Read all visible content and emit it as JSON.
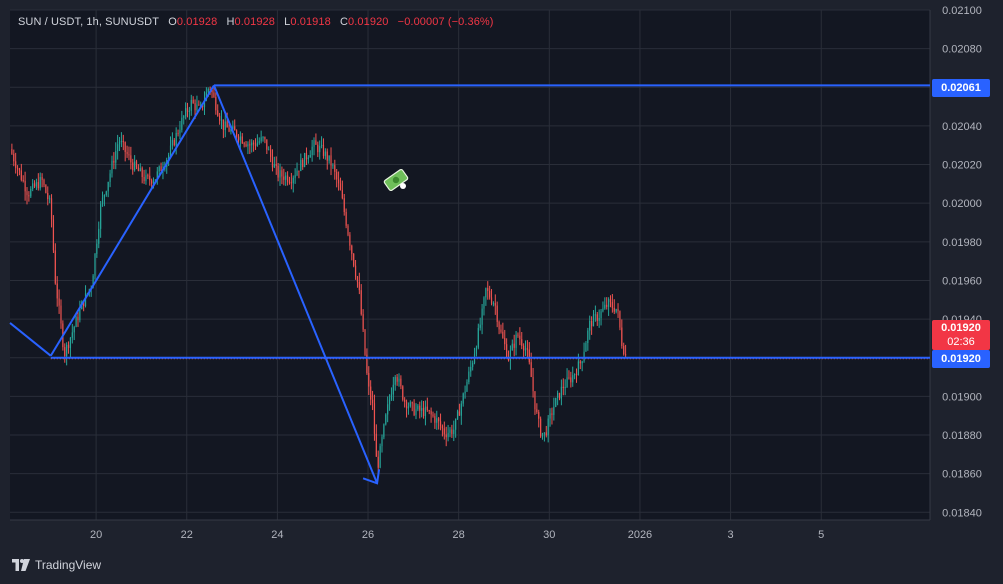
{
  "legend": {
    "symbol": "SUN / USDT, 1h, SUNUSDT",
    "open_label": "O",
    "open": "0.01928",
    "high_label": "H",
    "high": "0.01928",
    "low_label": "L",
    "low": "0.01918",
    "close_label": "C",
    "close": "0.01920",
    "change": "−0.00007 (−0.36%)"
  },
  "price_tags": {
    "upper_line": "0.02061",
    "last_price": "0.01920",
    "countdown": "02:36",
    "lower_line": "0.01920"
  },
  "footer": {
    "brand": "TradingView"
  },
  "colors": {
    "background": "#1e222d",
    "pane": "#131722",
    "grid": "#2a2e39",
    "up": "#26a69a",
    "down": "#ef5350",
    "drawing": "#2962ff",
    "axis_text": "#b2b5be"
  },
  "icons": {
    "sticker": "money-icon",
    "brand_logo": "tradingview-logo"
  },
  "chart_data": {
    "type": "candlestick",
    "title": "SUN / USDT, 1h, SUNUSDT",
    "ylim": [
      0.01836,
      0.021
    ],
    "y_ticks": [
      "0.02100",
      "0.02080",
      "0.02060",
      "0.02040",
      "0.02020",
      "0.02000",
      "0.01980",
      "0.01960",
      "0.01940",
      "0.01920",
      "0.01900",
      "0.01880",
      "0.01860",
      "0.01840"
    ],
    "x_ticks": [
      "20",
      "22",
      "24",
      "26",
      "28",
      "30",
      "2026",
      "3",
      "5"
    ],
    "x_tick_days": [
      20,
      22,
      24,
      26,
      28,
      30,
      32,
      34,
      36
    ],
    "xlim_days": [
      18.1,
      38.4
    ],
    "price_path": [
      {
        "d": 18.1,
        "p": 0.02028
      },
      {
        "d": 18.5,
        "p": 0.02005
      },
      {
        "d": 18.8,
        "p": 0.02012
      },
      {
        "d": 19.0,
        "p": 0.01998
      },
      {
        "d": 19.1,
        "p": 0.0196
      },
      {
        "d": 19.3,
        "p": 0.01922
      },
      {
        "d": 19.7,
        "p": 0.01948
      },
      {
        "d": 19.9,
        "p": 0.01958
      },
      {
        "d": 20.1,
        "p": 0.01998
      },
      {
        "d": 20.3,
        "p": 0.02015
      },
      {
        "d": 20.5,
        "p": 0.02033
      },
      {
        "d": 20.8,
        "p": 0.0202
      },
      {
        "d": 21.1,
        "p": 0.02012
      },
      {
        "d": 21.3,
        "p": 0.02013
      },
      {
        "d": 21.6,
        "p": 0.02025
      },
      {
        "d": 21.9,
        "p": 0.02043
      },
      {
        "d": 22.1,
        "p": 0.02052
      },
      {
        "d": 22.3,
        "p": 0.02048
      },
      {
        "d": 22.5,
        "p": 0.02061
      },
      {
        "d": 22.8,
        "p": 0.0204
      },
      {
        "d": 23.1,
        "p": 0.02036
      },
      {
        "d": 23.4,
        "p": 0.0203
      },
      {
        "d": 23.7,
        "p": 0.02033
      },
      {
        "d": 24.0,
        "p": 0.02015
      },
      {
        "d": 24.3,
        "p": 0.02013
      },
      {
        "d": 24.6,
        "p": 0.02023
      },
      {
        "d": 24.8,
        "p": 0.0203
      },
      {
        "d": 25.0,
        "p": 0.02027
      },
      {
        "d": 25.2,
        "p": 0.0202
      },
      {
        "d": 25.4,
        "p": 0.02005
      },
      {
        "d": 25.6,
        "p": 0.0198
      },
      {
        "d": 25.8,
        "p": 0.01955
      },
      {
        "d": 25.9,
        "p": 0.0193
      },
      {
        "d": 26.0,
        "p": 0.01905
      },
      {
        "d": 26.1,
        "p": 0.01895
      },
      {
        "d": 26.2,
        "p": 0.01862
      },
      {
        "d": 26.4,
        "p": 0.0189
      },
      {
        "d": 26.6,
        "p": 0.01913
      },
      {
        "d": 26.8,
        "p": 0.01898
      },
      {
        "d": 27.0,
        "p": 0.01893
      },
      {
        "d": 27.3,
        "p": 0.01892
      },
      {
        "d": 27.5,
        "p": 0.01888
      },
      {
        "d": 27.7,
        "p": 0.01881
      },
      {
        "d": 27.9,
        "p": 0.01883
      },
      {
        "d": 28.1,
        "p": 0.019
      },
      {
        "d": 28.3,
        "p": 0.01918
      },
      {
        "d": 28.5,
        "p": 0.0194
      },
      {
        "d": 28.6,
        "p": 0.01955
      },
      {
        "d": 28.8,
        "p": 0.01948
      },
      {
        "d": 28.9,
        "p": 0.01935
      },
      {
        "d": 29.1,
        "p": 0.0192
      },
      {
        "d": 29.3,
        "p": 0.01932
      },
      {
        "d": 29.5,
        "p": 0.01924
      },
      {
        "d": 29.6,
        "p": 0.0191
      },
      {
        "d": 29.7,
        "p": 0.01893
      },
      {
        "d": 29.8,
        "p": 0.01882
      },
      {
        "d": 29.9,
        "p": 0.0188
      },
      {
        "d": 30.1,
        "p": 0.01895
      },
      {
        "d": 30.3,
        "p": 0.01905
      },
      {
        "d": 30.5,
        "p": 0.0191
      },
      {
        "d": 30.7,
        "p": 0.01918
      },
      {
        "d": 30.9,
        "p": 0.01938
      },
      {
        "d": 31.1,
        "p": 0.01942
      },
      {
        "d": 31.3,
        "p": 0.01948
      },
      {
        "d": 31.5,
        "p": 0.01945
      },
      {
        "d": 31.6,
        "p": 0.01928
      },
      {
        "d": 31.7,
        "p": 0.0192
      }
    ],
    "trend_lines": [
      {
        "from": {
          "d": 18.1,
          "p": 0.01938
        },
        "to": {
          "d": 19.0,
          "p": 0.01921
        }
      },
      {
        "from": {
          "d": 19.0,
          "p": 0.01921
        },
        "to": {
          "d": 22.6,
          "p": 0.02061
        }
      },
      {
        "from": {
          "d": 22.6,
          "p": 0.02061
        },
        "to": {
          "d": 26.2,
          "p": 0.01855
        }
      }
    ],
    "horizontal_lines": [
      {
        "from_d": 22.6,
        "p": 0.02061,
        "label": "0.02061"
      },
      {
        "from_d": 19.0,
        "p": 0.0192,
        "label": "0.01920"
      }
    ],
    "grid": true
  }
}
